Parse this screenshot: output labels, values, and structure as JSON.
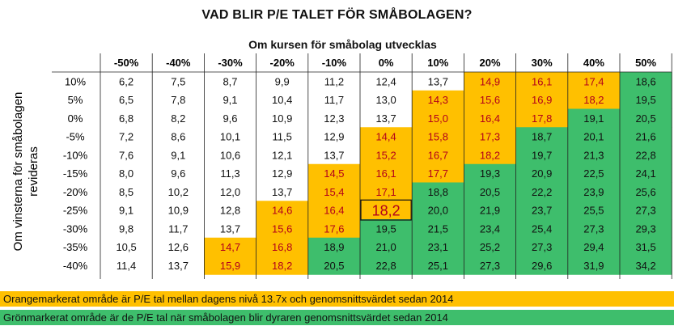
{
  "colors": {
    "orange": "#ffc000",
    "green": "#3ebe6c",
    "orange_text": "#b3001b",
    "grid_line": "#222222"
  },
  "chart_data": {
    "type": "table",
    "title": "VAD BLIR P/E TALET FÖR SMÅBOLAGEN?",
    "subtitle": "Om kursen för småbolag utvecklas",
    "ylabel_line1": "Om vinsterna för småbolagen",
    "ylabel_line2": "revideras",
    "columns": [
      "-50%",
      "-40%",
      "-30%",
      "-20%",
      "-10%",
      "0%",
      "10%",
      "20%",
      "30%",
      "40%",
      "50%"
    ],
    "rows": [
      "10%",
      "5%",
      "0%",
      "-5%",
      "-10%",
      "-15%",
      "-20%",
      "-25%",
      "-30%",
      "-35%",
      "-40%"
    ],
    "values": [
      [
        "6,2",
        "7,5",
        "8,7",
        "9,9",
        "11,2",
        "12,4",
        "13,7",
        "14,9",
        "16,1",
        "17,4",
        "18,6"
      ],
      [
        "6,5",
        "7,8",
        "9,1",
        "10,4",
        "11,7",
        "13,0",
        "14,3",
        "15,6",
        "16,9",
        "18,2",
        "19,5"
      ],
      [
        "6,8",
        "8,2",
        "9,6",
        "10,9",
        "12,3",
        "13,7",
        "15,0",
        "16,4",
        "17,8",
        "19,1",
        "20,5"
      ],
      [
        "7,2",
        "8,6",
        "10,1",
        "11,5",
        "12,9",
        "14,4",
        "15,8",
        "17,3",
        "18,7",
        "20,1",
        "21,6"
      ],
      [
        "7,6",
        "9,1",
        "10,6",
        "12,1",
        "13,7",
        "15,2",
        "16,7",
        "18,2",
        "19,7",
        "21,3",
        "22,8"
      ],
      [
        "8,0",
        "9,6",
        "11,3",
        "12,9",
        "14,5",
        "16,1",
        "17,7",
        "19,3",
        "20,9",
        "22,5",
        "24,1"
      ],
      [
        "8,5",
        "10,2",
        "12,0",
        "13,7",
        "15,4",
        "17,1",
        "18,8",
        "20,5",
        "22,2",
        "23,9",
        "25,6"
      ],
      [
        "9,1",
        "10,9",
        "12,8",
        "14,6",
        "16,4",
        "18,2",
        "20,0",
        "21,9",
        "23,7",
        "25,5",
        "27,3"
      ],
      [
        "9,8",
        "11,7",
        "13,7",
        "15,6",
        "17,6",
        "19,5",
        "21,5",
        "23,4",
        "25,4",
        "27,3",
        "29,3"
      ],
      [
        "10,5",
        "12,6",
        "14,7",
        "16,8",
        "18,9",
        "21,0",
        "23,1",
        "25,2",
        "27,3",
        "29,4",
        "31,5"
      ],
      [
        "11,4",
        "13,7",
        "15,9",
        "18,2",
        "20,5",
        "22,8",
        "25,1",
        "27,3",
        "29,6",
        "31,9",
        "34,2"
      ]
    ],
    "zones": [
      [
        "n",
        "n",
        "n",
        "n",
        "n",
        "n",
        "n",
        "o",
        "o",
        "o",
        "g"
      ],
      [
        "n",
        "n",
        "n",
        "n",
        "n",
        "n",
        "o",
        "o",
        "o",
        "o",
        "g"
      ],
      [
        "n",
        "n",
        "n",
        "n",
        "n",
        "n",
        "o",
        "o",
        "o",
        "g",
        "g"
      ],
      [
        "n",
        "n",
        "n",
        "n",
        "n",
        "o",
        "o",
        "o",
        "g",
        "g",
        "g"
      ],
      [
        "n",
        "n",
        "n",
        "n",
        "n",
        "o",
        "o",
        "o",
        "g",
        "g",
        "g"
      ],
      [
        "n",
        "n",
        "n",
        "n",
        "o",
        "o",
        "o",
        "g",
        "g",
        "g",
        "g"
      ],
      [
        "n",
        "n",
        "n",
        "n",
        "o",
        "o",
        "g",
        "g",
        "g",
        "g",
        "g"
      ],
      [
        "n",
        "n",
        "n",
        "o",
        "o",
        "o",
        "g",
        "g",
        "g",
        "g",
        "g"
      ],
      [
        "n",
        "n",
        "n",
        "o",
        "o",
        "g",
        "g",
        "g",
        "g",
        "g",
        "g"
      ],
      [
        "n",
        "n",
        "o",
        "o",
        "g",
        "g",
        "g",
        "g",
        "g",
        "g",
        "g"
      ],
      [
        "n",
        "n",
        "o",
        "o",
        "g",
        "g",
        "g",
        "g",
        "g",
        "g",
        "g"
      ]
    ],
    "highlight": {
      "row": 7,
      "col": 5
    }
  },
  "legend": {
    "orange": "Orangemarkerat område är P/E tal mellan dagens nivå 13.7x och genomsnittsvärdet sedan 2014",
    "green": "Grönmarkerat område är de P/E tal när småbolagen blir dyraren genomsnittsvärdet sedan 2014"
  }
}
